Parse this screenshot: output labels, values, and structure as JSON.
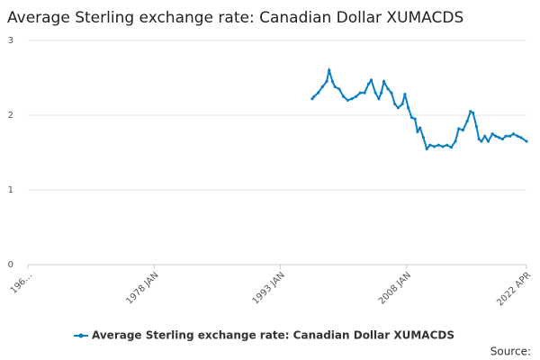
{
  "chart_data": {
    "type": "line",
    "title": "Average Sterling exchange rate: Canadian Dollar XUMACDS",
    "x": [
      1996.8,
      1997.0,
      1997.5,
      1998.0,
      1998.5,
      1998.8,
      1999.2,
      1999.5,
      2000.0,
      2000.5,
      2001.0,
      2001.5,
      2002.0,
      2002.5,
      2003.0,
      2003.5,
      2003.8,
      2004.3,
      2004.7,
      2005.0,
      2005.3,
      2005.8,
      2006.2,
      2006.6,
      2007.0,
      2007.5,
      2007.8,
      2008.2,
      2008.6,
      2009.0,
      2009.3,
      2009.6,
      2010.0,
      2010.4,
      2010.8,
      2011.3,
      2011.8,
      2012.3,
      2012.8,
      2013.3,
      2013.8,
      2014.2,
      2014.7,
      2015.2,
      2015.6,
      2015.9,
      2016.3,
      2016.6,
      2016.9,
      2017.3,
      2017.7,
      2018.2,
      2018.6,
      2019.0,
      2019.4,
      2019.8,
      2020.3,
      2020.7,
      2021.2,
      2021.6,
      2022.25
    ],
    "series": [
      {
        "name": "Average Sterling exchange rate: Canadian Dollar XUMACDS",
        "color": "#0a7ec2",
        "values": [
          2.22,
          2.25,
          2.3,
          2.38,
          2.45,
          2.6,
          2.45,
          2.38,
          2.35,
          2.25,
          2.2,
          2.22,
          2.25,
          2.3,
          2.3,
          2.42,
          2.47,
          2.3,
          2.22,
          2.3,
          2.45,
          2.35,
          2.3,
          2.15,
          2.1,
          2.15,
          2.28,
          2.1,
          1.97,
          1.95,
          1.78,
          1.83,
          1.7,
          1.55,
          1.6,
          1.58,
          1.6,
          1.58,
          1.6,
          1.57,
          1.65,
          1.82,
          1.8,
          1.92,
          2.05,
          2.03,
          1.85,
          1.68,
          1.65,
          1.72,
          1.65,
          1.75,
          1.72,
          1.7,
          1.68,
          1.72,
          1.72,
          1.75,
          1.72,
          1.7,
          1.65
        ]
      }
    ],
    "xlim": [
      1963,
      2022.25
    ],
    "xticks": [
      {
        "value": 1963,
        "label": "196…"
      },
      {
        "value": 1978,
        "label": "1978 JAN"
      },
      {
        "value": 1993,
        "label": "1993 JAN"
      },
      {
        "value": 2008,
        "label": "2008 JAN"
      },
      {
        "value": 2022.25,
        "label": "2022 APR"
      }
    ],
    "ylim": [
      0,
      3
    ],
    "yticks": [
      0,
      1,
      2,
      3
    ],
    "grid": true,
    "source": "Source:"
  }
}
